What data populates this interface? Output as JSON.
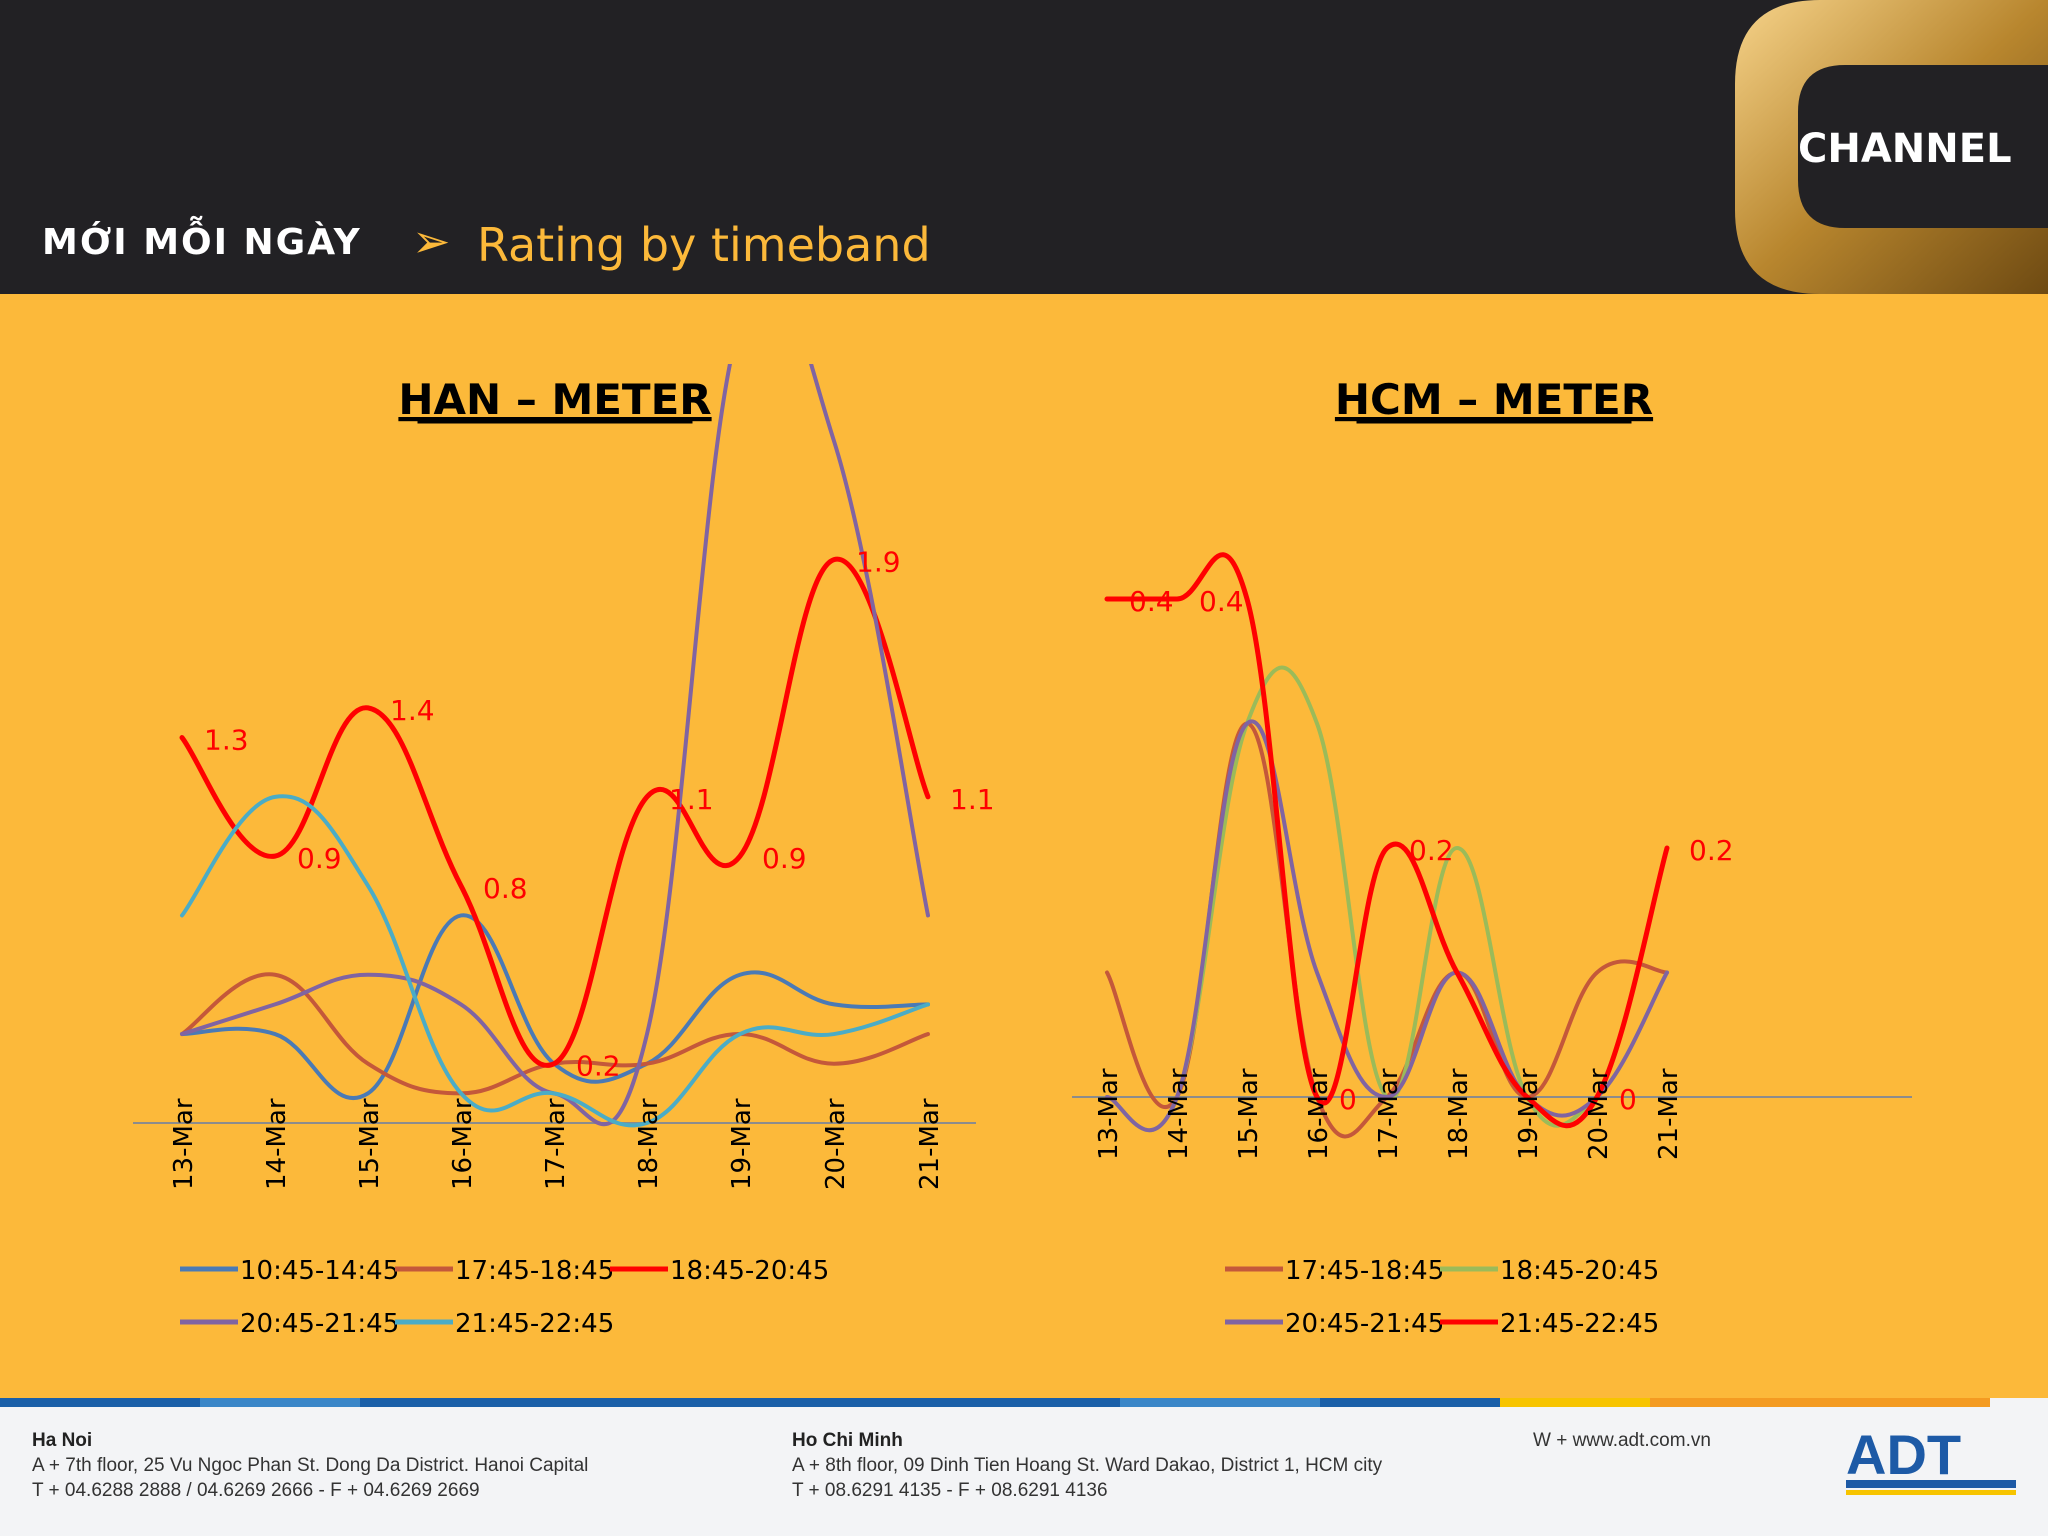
{
  "header": {
    "show_logo": "MỚI MỖI NGÀY",
    "arrow": "➢",
    "title": "Rating by timeband",
    "channel_logo": "CHANNEL"
  },
  "colors": {
    "background": "#fcb93a",
    "header_bg": "#222124",
    "accent_title": "#fcb93a",
    "series_10": "#4a7ab5",
    "series_17": "#c4583a",
    "series_18": "#ff0000",
    "series_18_green": "#9bbb59",
    "series_20": "#8064a2",
    "series_21": "#4bacc6"
  },
  "chart_data": [
    {
      "type": "line",
      "title": "HAN – METER",
      "categories": [
        "13-Mar",
        "14-Mar",
        "15-Mar",
        "16-Mar",
        "17-Mar",
        "18-Mar",
        "19-Mar",
        "20-Mar",
        "21-Mar"
      ],
      "ylim": [
        0,
        2
      ],
      "series": [
        {
          "name": "10:45-14:45",
          "color": "#4a7ab5",
          "values": [
            0.3,
            0.3,
            0.1,
            0.7,
            0.2,
            0.2,
            0.5,
            0.4,
            0.4
          ],
          "labels": false
        },
        {
          "name": "17:45-18:45",
          "color": "#c4583a",
          "values": [
            0.3,
            0.5,
            0.2,
            0.1,
            0.2,
            0.2,
            0.3,
            0.2,
            0.3
          ],
          "labels": false
        },
        {
          "name": "18:45-20:45",
          "color": "#ff0000",
          "values": [
            1.3,
            0.9,
            1.4,
            0.8,
            0.2,
            1.1,
            0.9,
            1.9,
            1.1
          ],
          "labels": true
        },
        {
          "name": "20:45-21:45",
          "color": "#8064a2",
          "values": [
            0.3,
            0.4,
            0.5,
            0.4,
            0.1,
            0.3,
            2.7,
            2.3,
            0.7
          ],
          "labels": false
        },
        {
          "name": "21:45-22:45",
          "color": "#4bacc6",
          "values": [
            0.7,
            1.1,
            0.8,
            0.1,
            0.1,
            0.0,
            0.3,
            0.3,
            0.4
          ],
          "labels": false
        }
      ],
      "legend_rows": [
        [
          "10:45-14:45",
          "17:45-18:45",
          "18:45-20:45"
        ],
        [
          "20:45-21:45",
          "21:45-22:45"
        ]
      ]
    },
    {
      "type": "line",
      "title": "HCM – METER",
      "categories": [
        "13-Mar",
        "14-Mar",
        "15-Mar",
        "16-Mar",
        "17-Mar",
        "18-Mar",
        "19-Mar",
        "20-Mar",
        "21-Mar"
      ],
      "ylim": [
        0,
        0.4
      ],
      "series": [
        {
          "name": "17:45-18:45",
          "color": "#c4583a",
          "values": [
            0.1,
            0,
            0.3,
            0,
            0,
            0.1,
            0,
            0.1,
            0.1
          ],
          "labels": false
        },
        {
          "name": "18:45-20:45",
          "color": "#9bbb59",
          "values": [
            0,
            0,
            0.3,
            0.3,
            0,
            0.2,
            0,
            0,
            0.1
          ],
          "labels": false
        },
        {
          "name": "20:45-21:45",
          "color": "#8064a2",
          "values": [
            0,
            0,
            0.3,
            0.1,
            0,
            0.1,
            0,
            0,
            0.1
          ],
          "labels": false
        },
        {
          "name": "21:45-22:45",
          "color": "#ff0000",
          "values": [
            0.4,
            0.4,
            0.4,
            0,
            0.2,
            0.1,
            0,
            0,
            0.2
          ],
          "labels": true,
          "label_text": [
            "0.4",
            "0.4",
            "",
            "0",
            "0.2",
            "",
            "",
            "0",
            "0.2"
          ]
        }
      ],
      "legend_rows": [
        [
          "17:45-18:45",
          "18:45-20:45"
        ],
        [
          "20:45-21:45",
          "21:45-22:45"
        ]
      ]
    }
  ],
  "footer": {
    "hanoi": {
      "city": "Ha Noi",
      "address": "A + 7th floor, 25 Vu Ngoc Phan St. Dong Da District. Hanoi Capital",
      "phone": "T + 04.6288 2888 / 04.6269 2666 - F + 04.6269 2669"
    },
    "hcm": {
      "city": "Ho Chi Minh",
      "address": "A + 8th floor, 09 Dinh Tien Hoang St. Ward Dakao, District 1, HCM city",
      "phone": "T + 08.6291 4135 - F + 08.6291 4136"
    },
    "web": "W + www.adt.com.vn",
    "logo": "ADT"
  }
}
